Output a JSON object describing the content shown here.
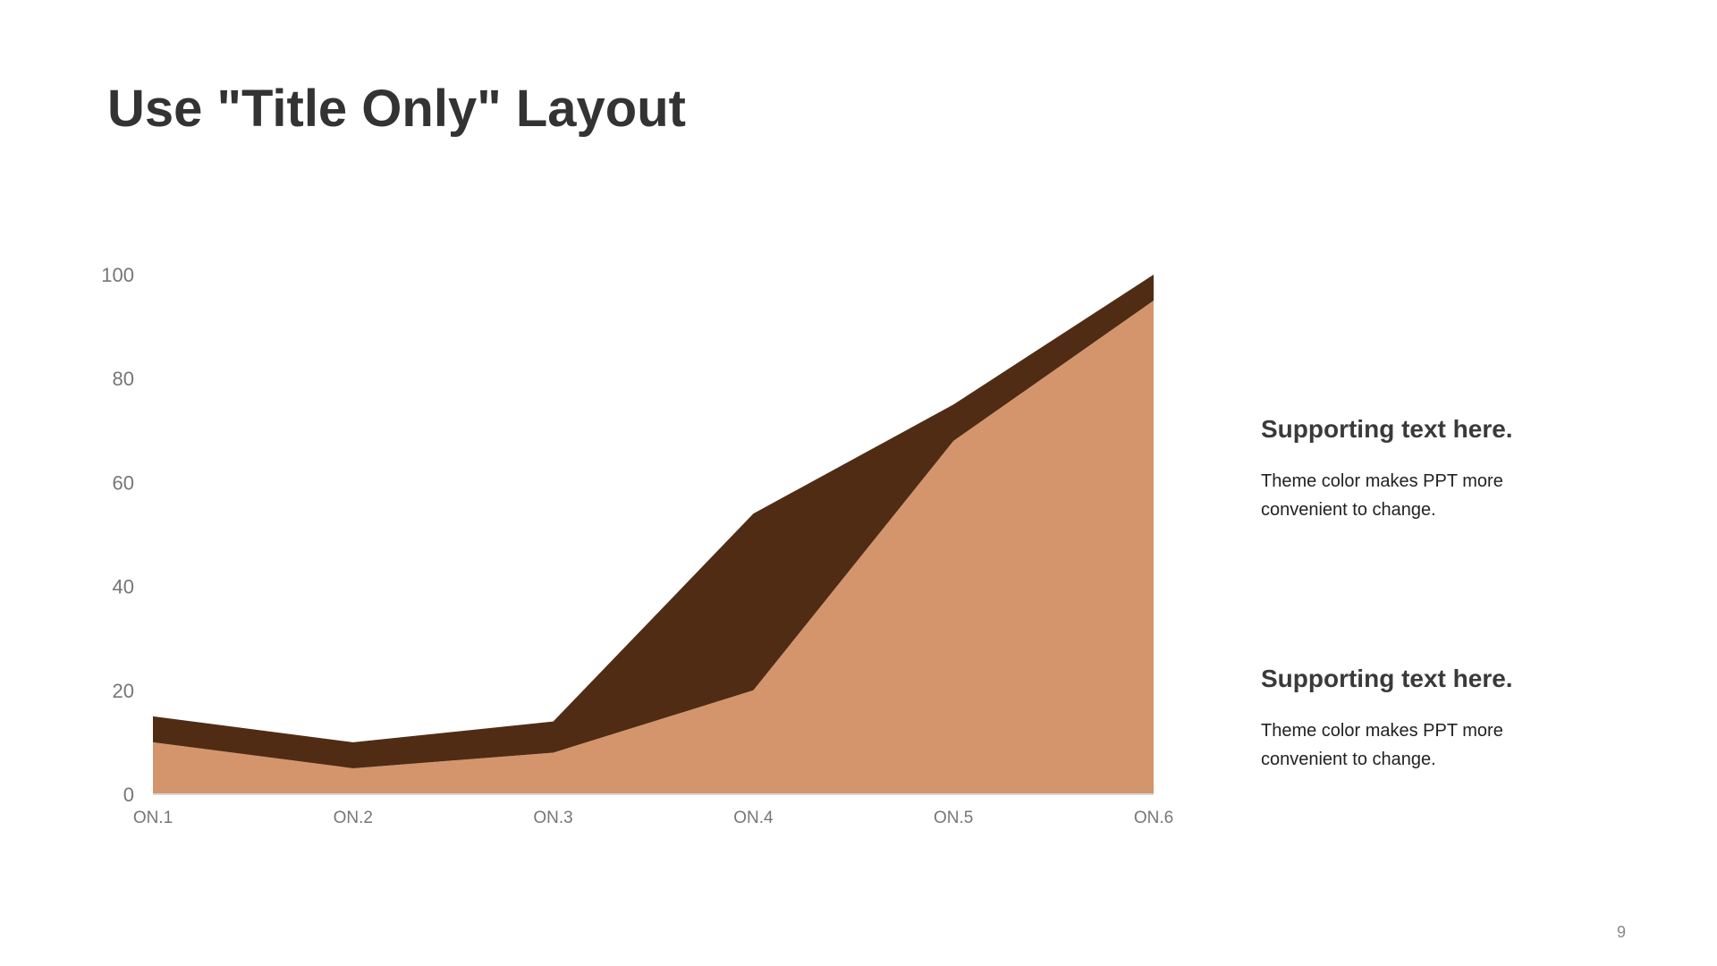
{
  "title": "Use \"Title Only\" Layout",
  "page_number": "9",
  "notes": [
    {
      "heading": "Supporting text here.",
      "body": "Theme color makes PPT more convenient  to change."
    },
    {
      "heading": "Supporting text here.",
      "body": "Theme color makes PPT more convenient  to change."
    }
  ],
  "chart_data": {
    "type": "area",
    "stacked": true,
    "categories": [
      "ON.1",
      "ON.2",
      "ON.3",
      "ON.4",
      "ON.5",
      "ON.6"
    ],
    "series": [
      {
        "values": [
          10,
          5,
          8,
          20,
          68,
          95
        ],
        "color": "#D4956D"
      },
      {
        "values": [
          5,
          5,
          6,
          34,
          7,
          5
        ],
        "color": "#512C14"
      }
    ],
    "ylim": [
      0,
      100
    ],
    "yticks": [
      0,
      20,
      40,
      60,
      80,
      100
    ],
    "grid": false,
    "legend": "none",
    "axis_color": "#D9D9D9",
    "tick_label_color": "#767676"
  }
}
